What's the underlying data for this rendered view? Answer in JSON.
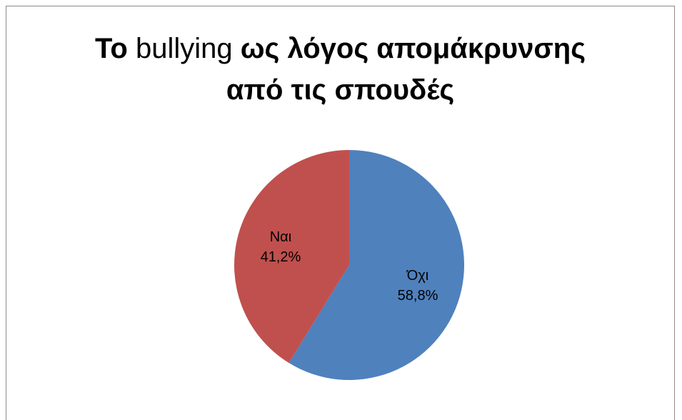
{
  "chart_data": {
    "type": "pie",
    "title": {
      "part1": "Το",
      "part2": " bullying ",
      "part3": "ως λόγος απομάκρυνσης",
      "line2": "από τις σπουδές"
    },
    "slices": [
      {
        "label": "Όχι",
        "value": 58.8,
        "value_label": "58,8%",
        "color": "#4f81bd"
      },
      {
        "label": "Ναι",
        "value": 41.2,
        "value_label": "41,2%",
        "color": "#c0504d"
      }
    ],
    "start_direction": "top",
    "direction": "clockwise",
    "legend": "none",
    "labels": "inside"
  }
}
